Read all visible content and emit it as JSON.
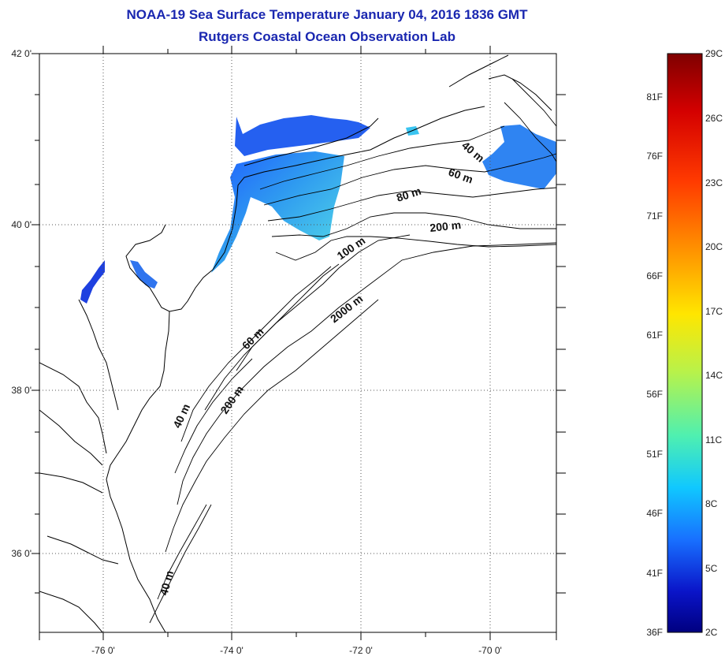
{
  "title": "NOAA-19 Sea Surface Temperature January 04, 2016 1836 GMT",
  "subtitle": "Rutgers Coastal Ocean Observation Lab",
  "axes": {
    "x_ticks": [
      "-76 0'",
      "-74 0'",
      "-72 0'",
      "-70 0'"
    ],
    "y_ticks": [
      "42 0'",
      "40 0'",
      "38 0'",
      "36 0'"
    ]
  },
  "contours": {
    "labels": [
      "40 m",
      "60 m",
      "80 m",
      "200 m",
      "100 m",
      "2000 m",
      "60 m",
      "40 m",
      "200 m",
      "40 m"
    ]
  },
  "colorbar": {
    "celsius": [
      "29C",
      "26C",
      "23C",
      "20C",
      "17C",
      "14C",
      "11C",
      "8C",
      "5C",
      "2C"
    ],
    "fahrenheit": [
      "81F",
      "76F",
      "71F",
      "66F",
      "61F",
      "56F",
      "51F",
      "46F",
      "41F",
      "36F"
    ],
    "colors": [
      "#7f0000",
      "#d40000",
      "#ff3a00",
      "#ff9a00",
      "#ffe600",
      "#b8f24a",
      "#4ff0b0",
      "#10c8ff",
      "#1870ff",
      "#0a14c8",
      "#000080"
    ]
  },
  "sst_colors": [
    "#1e5cff",
    "#2f9bf0",
    "#49c8ea",
    "#6fd8e6"
  ]
}
